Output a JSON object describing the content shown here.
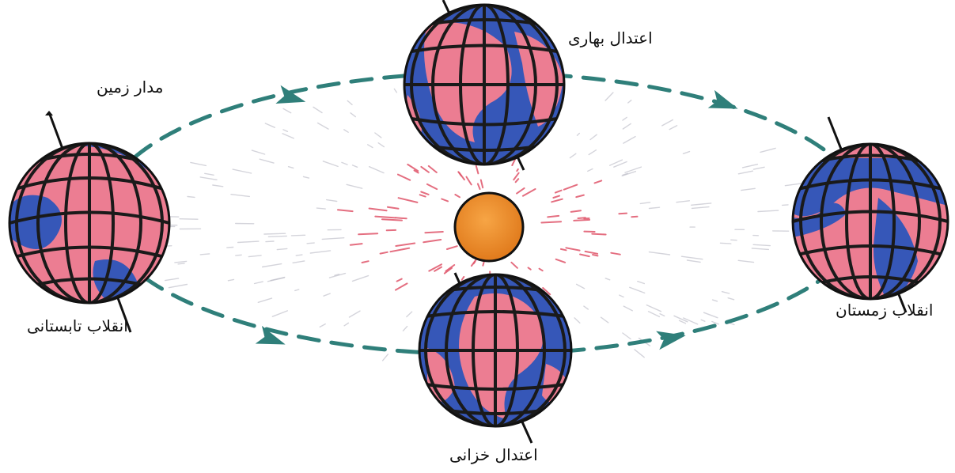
{
  "labels": {
    "orbit": "مدار زمین",
    "spring_equinox": "اعتدال بهاری",
    "summer_solstice": "انقلاب تابستانی",
    "winter_solstice": "انقلاب زمستان",
    "autumn_equinox": "اعتدال خزانی"
  },
  "colors": {
    "orbit": "#2f7f7a",
    "sun": "#f28c28",
    "sun_rays": "#e0556a",
    "globe_land": "#ec7d92",
    "globe_ocean": "#3657b8",
    "globe_grid": "#1a1a1a"
  }
}
